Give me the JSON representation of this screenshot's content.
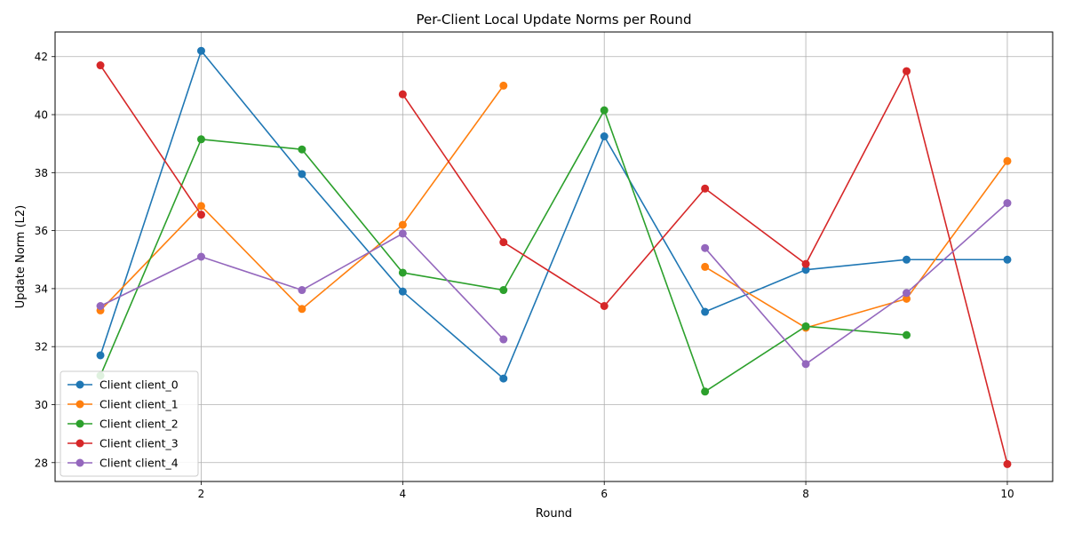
{
  "chart_data": {
    "type": "line",
    "title": "Per-Client Local Update Norms per Round",
    "xlabel": "Round",
    "ylabel": "Update Norm (L2)",
    "xlim": [
      0.55,
      10.45
    ],
    "ylim": [
      27.35,
      42.85
    ],
    "xticks": [
      2,
      4,
      6,
      8,
      10
    ],
    "yticks": [
      28,
      30,
      32,
      34,
      36,
      38,
      40,
      42
    ],
    "grid": true,
    "legend_position": "lower-left",
    "series": [
      {
        "name": "Client client_0",
        "color": "#1f77b4",
        "points": [
          [
            1,
            31.7
          ],
          [
            2,
            42.2
          ],
          [
            3,
            37.95
          ],
          [
            4,
            33.9
          ],
          [
            5,
            30.9
          ],
          [
            6,
            39.25
          ],
          [
            7,
            33.2
          ],
          [
            8,
            34.65
          ],
          [
            9,
            35.0
          ],
          [
            10,
            35.0
          ]
        ]
      },
      {
        "name": "Client client_1",
        "color": "#ff7f0e",
        "points": [
          [
            1,
            33.25
          ],
          [
            2,
            36.85
          ],
          [
            3,
            33.3
          ],
          [
            4,
            36.2
          ],
          [
            5,
            41.0
          ],
          [
            null,
            null
          ],
          [
            7,
            34.75
          ],
          [
            8,
            32.65
          ],
          [
            9,
            33.65
          ],
          [
            10,
            38.4
          ]
        ]
      },
      {
        "name": "Client client_2",
        "color": "#2ca02c",
        "points": [
          [
            1,
            31.0
          ],
          [
            2,
            39.15
          ],
          [
            3,
            38.8
          ],
          [
            4,
            34.55
          ],
          [
            5,
            33.95
          ],
          [
            6,
            40.15
          ],
          [
            7,
            30.45
          ],
          [
            8,
            32.7
          ],
          [
            9,
            32.4
          ]
        ]
      },
      {
        "name": "Client client_3",
        "color": "#d62728",
        "points": [
          [
            1,
            41.7
          ],
          [
            2,
            36.55
          ],
          [
            null,
            null
          ],
          [
            4,
            40.7
          ],
          [
            5,
            35.6
          ],
          [
            6,
            33.4
          ],
          [
            7,
            37.45
          ],
          [
            8,
            34.85
          ],
          [
            9,
            41.5
          ],
          [
            10,
            27.95
          ]
        ]
      },
      {
        "name": "Client client_4",
        "color": "#9467bd",
        "points": [
          [
            1,
            33.4
          ],
          [
            2,
            35.1
          ],
          [
            3,
            33.95
          ],
          [
            4,
            35.9
          ],
          [
            5,
            32.25
          ],
          [
            null,
            null
          ],
          [
            7,
            35.4
          ],
          [
            8,
            31.4
          ],
          [
            9,
            33.85
          ],
          [
            10,
            36.95
          ]
        ]
      }
    ]
  }
}
